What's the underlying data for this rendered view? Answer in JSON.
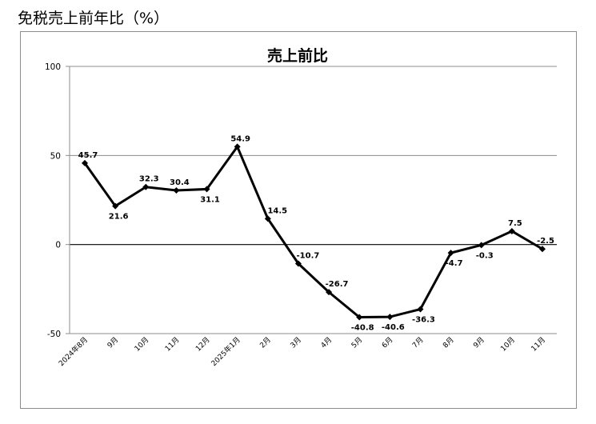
{
  "page": {
    "heading": "免税売上前年比（%）"
  },
  "chart_data": {
    "type": "line",
    "title": "売上前比",
    "xlabel": "",
    "ylabel": "",
    "ylim": [
      -50,
      100
    ],
    "yticks": [
      100,
      50,
      0,
      -50
    ],
    "grid": true,
    "legend": "none",
    "categories": [
      "2024年8月",
      "9月",
      "10月",
      "11月",
      "12月",
      "2025年1月",
      "2月",
      "3月",
      "4月",
      "5月",
      "6月",
      "7月",
      "8月",
      "9月",
      "10月",
      "11月"
    ],
    "series": [
      {
        "values": [
          45.7,
          21.6,
          32.3,
          30.4,
          31.1,
          54.9,
          14.5,
          -10.7,
          -26.7,
          -40.8,
          -40.6,
          -36.3,
          -4.7,
          -0.3,
          7.5,
          -2.5
        ],
        "labels": [
          "45.7",
          "21.6",
          "32.3",
          "30.4",
          "31.1",
          "54.9",
          "14.5",
          "-10.7",
          "-26.7",
          "-40.8",
          "-40.6",
          "-36.3",
          "-4.7",
          "-0.3",
          "7.5",
          "-2.5"
        ],
        "color": "#000000"
      }
    ]
  }
}
